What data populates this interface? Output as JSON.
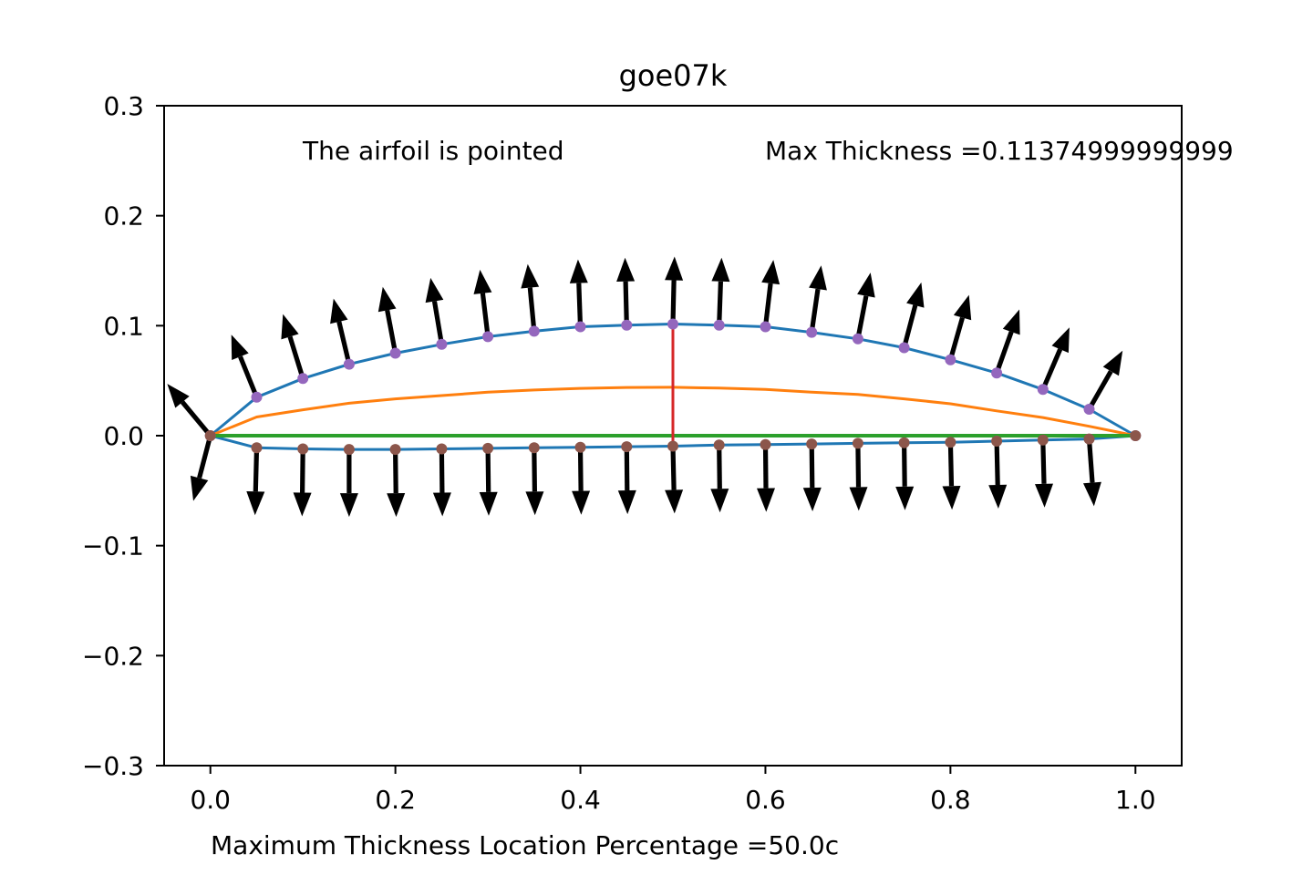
{
  "chart_data": {
    "type": "line",
    "title": "goe07k",
    "xlabel": "",
    "ylabel": "",
    "xlim": [
      -0.05,
      1.05
    ],
    "ylim": [
      -0.3,
      0.3
    ],
    "xticks": [
      0.0,
      0.2,
      0.4,
      0.6,
      0.8,
      1.0
    ],
    "yticks": [
      -0.3,
      -0.2,
      -0.1,
      0.0,
      0.1,
      0.2,
      0.3
    ],
    "xtick_labels": [
      "0.0",
      "0.2",
      "0.4",
      "0.6",
      "0.8",
      "1.0"
    ],
    "ytick_labels": [
      "−0.3",
      "−0.2",
      "−0.1",
      "0.0",
      "0.1",
      "0.2",
      "0.3"
    ],
    "grid": false,
    "annotations": {
      "pointed": "The airfoil is pointed",
      "max_thickness": "Max Thickness =0.11374999999999",
      "max_location": "Maximum Thickness Location Percentage =50.0c"
    },
    "colors": {
      "surface": "#1f77b4",
      "camber": "#ff7f0e",
      "chord": "#2ca02c",
      "thickness": "#d62728",
      "upper_points": "#9467bd",
      "lower_points": "#8c564b",
      "arrows": "#000000"
    },
    "series": [
      {
        "role": "upper_surface",
        "x": [
          0.0,
          0.05,
          0.1,
          0.15,
          0.2,
          0.25,
          0.3,
          0.35,
          0.4,
          0.45,
          0.5,
          0.55,
          0.6,
          0.65,
          0.7,
          0.75,
          0.8,
          0.85,
          0.9,
          0.95,
          1.0
        ],
        "y": [
          0.0,
          0.035,
          0.052,
          0.065,
          0.075,
          0.083,
          0.09,
          0.095,
          0.099,
          0.1005,
          0.1015,
          0.1005,
          0.099,
          0.094,
          0.088,
          0.08,
          0.069,
          0.057,
          0.042,
          0.024,
          0.0
        ]
      },
      {
        "role": "lower_surface",
        "x": [
          0.0,
          0.05,
          0.1,
          0.15,
          0.2,
          0.25,
          0.3,
          0.35,
          0.4,
          0.45,
          0.5,
          0.55,
          0.6,
          0.65,
          0.7,
          0.75,
          0.8,
          0.85,
          0.9,
          0.95,
          1.0
        ],
        "y": [
          0.0,
          -0.011,
          -0.012,
          -0.0125,
          -0.0125,
          -0.012,
          -0.0115,
          -0.011,
          -0.0105,
          -0.01,
          -0.0095,
          -0.0085,
          -0.008,
          -0.0075,
          -0.007,
          -0.0065,
          -0.006,
          -0.005,
          -0.004,
          -0.003,
          0.0
        ]
      },
      {
        "role": "camber_line",
        "x": [
          0.0,
          0.05,
          0.1,
          0.15,
          0.2,
          0.25,
          0.3,
          0.35,
          0.4,
          0.45,
          0.5,
          0.55,
          0.6,
          0.65,
          0.7,
          0.75,
          0.8,
          0.85,
          0.9,
          0.95,
          1.0
        ],
        "y": [
          0.0,
          0.017,
          0.0235,
          0.0295,
          0.0335,
          0.0365,
          0.0395,
          0.0415,
          0.043,
          0.0438,
          0.044,
          0.0433,
          0.042,
          0.0395,
          0.0375,
          0.0335,
          0.029,
          0.0225,
          0.0165,
          0.0085,
          0.0
        ]
      },
      {
        "role": "chord_line",
        "x": [
          0.0,
          1.0
        ],
        "y": [
          0.0,
          0.0
        ]
      },
      {
        "role": "max_thickness_line",
        "x": [
          0.5,
          0.5
        ],
        "y": [
          -0.0095,
          0.1015
        ]
      }
    ]
  }
}
